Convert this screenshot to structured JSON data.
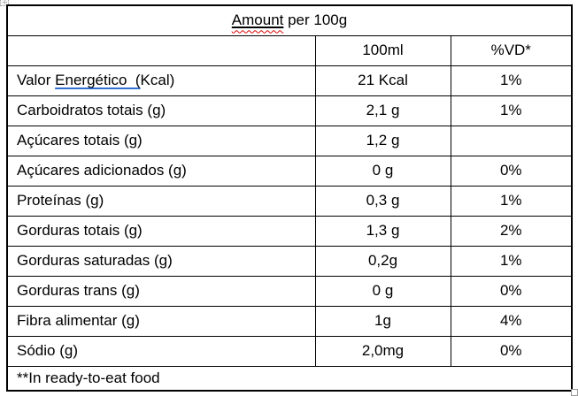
{
  "page": {
    "title": {
      "underlined_word": "Amount",
      "rest": " per 100g"
    },
    "columns": {
      "blank": "",
      "amount": "100ml",
      "vd": "%VD*"
    },
    "rows": [
      {
        "label_prefix": "Valor ",
        "label_marked": "Energético  (",
        "label_suffix": "Kcal)",
        "value": "21 Kcal",
        "vd": "1%"
      },
      {
        "label": "Carboidratos totais (g)",
        "value": "2,1 g",
        "vd": "1%"
      },
      {
        "label": "Açúcares totais (g)",
        "value": "1,2 g",
        "vd": ""
      },
      {
        "label": "Açúcares adicionados (g)",
        "value": "0 g",
        "vd": "0%"
      },
      {
        "label": "Proteínas (g)",
        "value": "0,3 g",
        "vd": "1%"
      },
      {
        "label": "Gorduras totais (g)",
        "value": "1,3 g",
        "vd": "2%"
      },
      {
        "label": "Gorduras saturadas (g)",
        "value": "0,2g",
        "vd": "1%"
      },
      {
        "label": "Gorduras trans (g)",
        "value": "0 g",
        "vd": "0%"
      },
      {
        "label": "Fibra alimentar (g)",
        "value": "1g",
        "vd": "4%"
      },
      {
        "label": "Sódio (g)",
        "value": "2,0mg",
        "vd": "0%"
      }
    ],
    "footnote": "**In ready-to-eat food",
    "colors": {
      "spellcheck_red": "#dd0404",
      "grammar_blue": "#2e6fd0",
      "border_black": "#000000",
      "handle_gray": "#999999"
    },
    "icons": {
      "top_left": "table-move-handle-icon",
      "bottom_right": "table-resize-handle-icon"
    }
  }
}
